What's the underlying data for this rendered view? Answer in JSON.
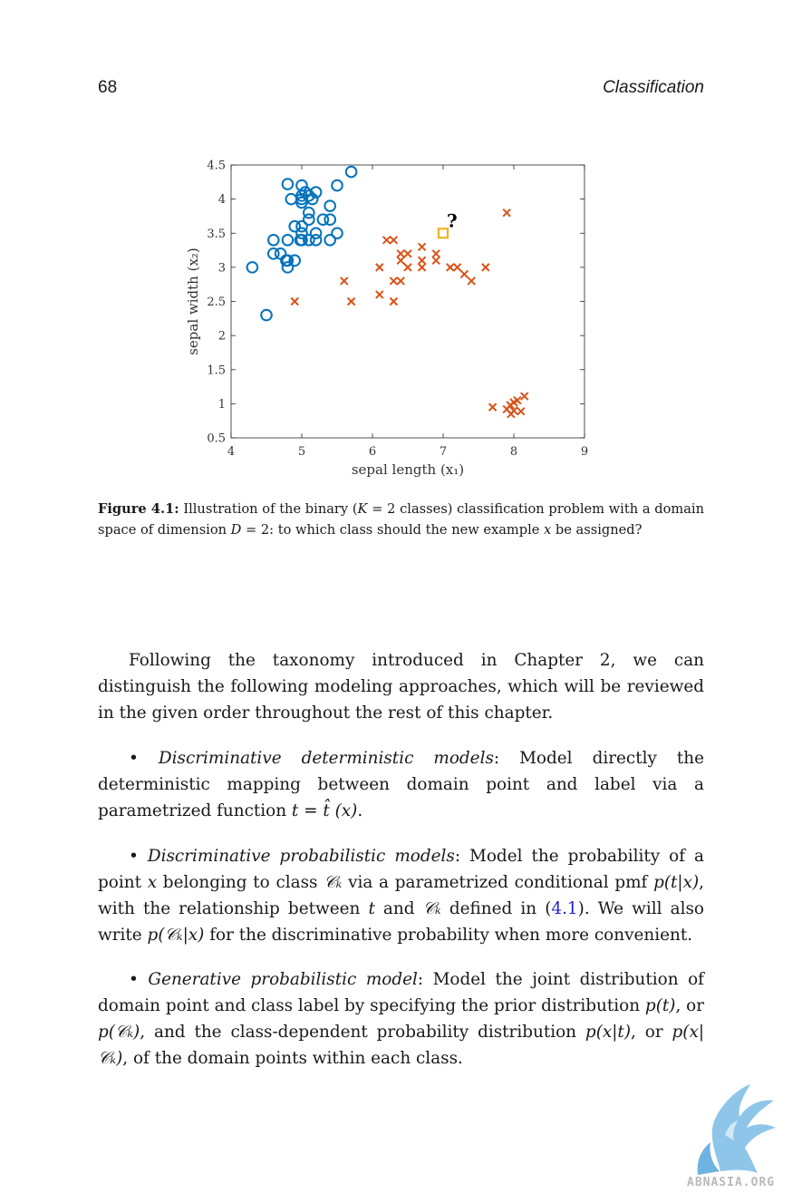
{
  "header": {
    "page_number": "68",
    "running_title": "Classification"
  },
  "figure": {
    "question_mark": "?",
    "caption": {
      "label": "Figure 4.1:",
      "text_a": " Illustration of the binary (",
      "text_b": "K",
      "text_c": " = 2 classes) classification problem with a domain space of dimension ",
      "text_d": "D",
      "text_e": " = 2: to which class should the new example ",
      "text_f": "x",
      "text_g": " be assigned?"
    }
  },
  "chart_data": {
    "type": "scatter",
    "xlabel": "sepal length (x₁)",
    "ylabel": "sepal width (x₂)",
    "xlim": [
      4,
      9
    ],
    "ylim": [
      0.5,
      4.5
    ],
    "xticks": [
      "4",
      "5",
      "6",
      "7",
      "8",
      "9"
    ],
    "yticks": [
      "0.5",
      "1",
      "1.5",
      "2",
      "2.5",
      "3",
      "3.5",
      "4",
      "4.5"
    ],
    "grid": false,
    "colors": {
      "circles": "#0072bd",
      "crosses": "#d95319",
      "new_point": "#edb120"
    },
    "series": [
      {
        "marker": "circle",
        "x": [
          4.3,
          4.5,
          4.6,
          4.6,
          4.7,
          4.8,
          4.8,
          4.8,
          4.8,
          4.85,
          4.9,
          4.9,
          5.0,
          5.0,
          5.0,
          5.0,
          5.0,
          5.0,
          5.0,
          5.05,
          5.1,
          5.1,
          5.1,
          5.1,
          5.15,
          5.2,
          5.2,
          5.2,
          5.3,
          5.4,
          5.4,
          5.4,
          5.5,
          5.5,
          5.7,
          4.78,
          4.98
        ],
        "y": [
          3.0,
          2.3,
          3.2,
          3.4,
          3.2,
          3.0,
          3.1,
          3.4,
          4.22,
          4.0,
          3.1,
          3.6,
          3.4,
          3.5,
          3.6,
          3.95,
          4.0,
          4.05,
          4.2,
          4.1,
          3.4,
          3.7,
          3.8,
          4.05,
          4.0,
          3.4,
          3.5,
          4.1,
          3.7,
          3.4,
          3.7,
          3.9,
          3.5,
          4.2,
          4.4,
          3.1,
          3.4
        ]
      },
      {
        "marker": "cross",
        "x": [
          4.9,
          5.6,
          5.7,
          6.1,
          6.1,
          6.2,
          6.3,
          6.3,
          6.3,
          6.4,
          6.4,
          6.4,
          6.5,
          6.5,
          6.7,
          6.7,
          6.7,
          6.9,
          6.9,
          7.1,
          7.2,
          7.3,
          7.4,
          7.6,
          7.9,
          7.7,
          7.9,
          7.95,
          8.0,
          8.0,
          8.05,
          8.1,
          8.15,
          7.96
        ],
        "y": [
          2.5,
          2.8,
          2.5,
          3.0,
          2.6,
          3.4,
          3.4,
          2.8,
          2.5,
          3.2,
          3.1,
          2.8,
          3.2,
          3.0,
          3.3,
          3.1,
          3.0,
          3.1,
          3.2,
          3.0,
          3.0,
          2.9,
          2.8,
          3.0,
          3.8,
          0.95,
          0.92,
          0.98,
          1.02,
          0.9,
          1.05,
          0.89,
          1.11,
          0.85
        ]
      },
      {
        "marker": "square",
        "x": [
          7.0
        ],
        "y": [
          3.5
        ]
      }
    ]
  },
  "body": {
    "para1": "Following the taxonomy introduced in Chapter 2, we can distinguish the following modeling approaches, which will be reviewed in the given order throughout the rest of this chapter.",
    "bullet1_term": "Discriminative deterministic models",
    "bullet1_a": ": Model directly the deterministic mapping between domain point and label via a parametrized function ",
    "bullet1_math": "t = t̂ (x)",
    "bullet1_end": ".",
    "bullet2_term": "Discriminative probabilistic models",
    "bullet2_a": ": Model the probability of a point ",
    "bullet2_x": "x",
    "bullet2_b": " belonging to class ",
    "bullet2_ck": "𝒞ₖ",
    "bullet2_c": " via a parametrized conditional pmf ",
    "bullet2_ptx": "p(t|x)",
    "bullet2_d": ", with the relationship between ",
    "bullet2_t": "t",
    "bullet2_e": " and ",
    "bullet2_ck2": "𝒞ₖ",
    "bullet2_f": " defined in (",
    "bullet2_ref": "4.1",
    "bullet2_g": "). We will also write ",
    "bullet2_pckx": "p(𝒞ₖ|x)",
    "bullet2_h": " for the discriminative probability when more convenient.",
    "bullet3_term": "Generative probabilistic model",
    "bullet3_a": ": Model the joint distribution of domain point and class label by specifying the prior distribution ",
    "bullet3_pt": "p(t)",
    "bullet3_b": ", or ",
    "bullet3_pck": "p(𝒞ₖ)",
    "bullet3_c": ", and the class-dependent probability distribution ",
    "bullet3_pxt": "p(x|t)",
    "bullet3_d": ", or ",
    "bullet3_pxck": "p(x|𝒞ₖ)",
    "bullet3_e": ", of the domain points within each class."
  },
  "watermark": "ABNASIA.ORG"
}
